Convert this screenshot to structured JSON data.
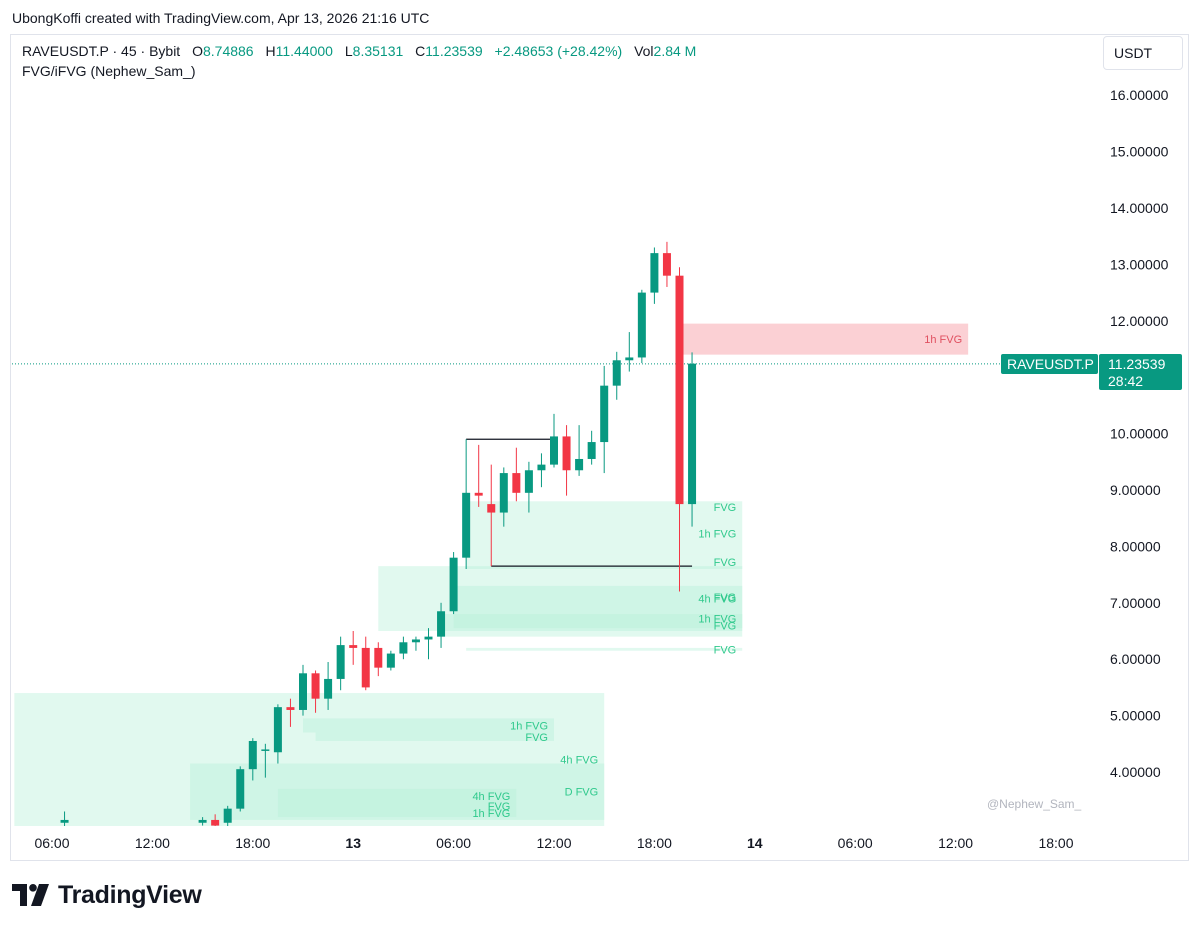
{
  "caption": "UbongKoffi created with TradingView.com, Apr 13, 2026 21:16 UTC",
  "legend": {
    "symbol": "RAVEUSDT.P · 45 · Bybit",
    "o_label": "O",
    "o_value": "8.74886",
    "h_label": "H",
    "h_value": "11.44000",
    "l_label": "L",
    "l_value": "8.35131",
    "c_label": "C",
    "c_value": "11.23539",
    "change": "+2.48653 (+28.42%)",
    "vol_label": "Vol",
    "vol_value": "2.84 M",
    "indicator": "FVG/iFVG (Nephew_Sam_)"
  },
  "currency": "USDT",
  "price_label": {
    "symbol": "RAVEUSDT.P",
    "price": "11.23539",
    "countdown": "28:42"
  },
  "watermark": "@Nephew_Sam_",
  "brand": "TradingView",
  "colors": {
    "up": "#089981",
    "down": "#f23645",
    "bull_zone": "#b7f0d8",
    "bear_zone": "#f9c0c6",
    "zone_text_bull": "#2fc98c",
    "zone_text_bear": "#e05060"
  },
  "chart_data": {
    "type": "candlestick",
    "timeframe": "45",
    "y_ticks": [
      "4.00000",
      "5.00000",
      "6.00000",
      "7.00000",
      "8.00000",
      "9.00000",
      "10.00000",
      "11.00000",
      "12.00000",
      "13.00000",
      "14.00000",
      "15.00000",
      "16.00000"
    ],
    "ylim": [
      3.0,
      16.5
    ],
    "x_ticks": [
      {
        "label": "06:00",
        "bar": 0,
        "bold": false
      },
      {
        "label": "12:00",
        "bar": 8,
        "bold": false
      },
      {
        "label": "18:00",
        "bar": 16,
        "bold": false
      },
      {
        "label": "13",
        "bar": 24,
        "bold": true
      },
      {
        "label": "06:00",
        "bar": 32,
        "bold": false
      },
      {
        "label": "12:00",
        "bar": 40,
        "bold": false
      },
      {
        "label": "18:00",
        "bar": 48,
        "bold": false
      },
      {
        "label": "14",
        "bar": 56,
        "bold": true
      },
      {
        "label": "06:00",
        "bar": 64,
        "bold": false
      },
      {
        "label": "12:00",
        "bar": 72,
        "bold": false
      },
      {
        "label": "18:00",
        "bar": 80,
        "bold": false
      }
    ],
    "candles": [
      {
        "bar": 1,
        "o": 3.1,
        "h": 3.3,
        "l": 3.0,
        "c": 3.15
      },
      {
        "bar": 12,
        "o": 3.1,
        "h": 3.2,
        "l": 3.05,
        "c": 3.15
      },
      {
        "bar": 13,
        "o": 3.15,
        "h": 3.25,
        "l": 3.0,
        "c": 3.05
      },
      {
        "bar": 14,
        "o": 3.1,
        "h": 3.4,
        "l": 3.0,
        "c": 3.35
      },
      {
        "bar": 15,
        "o": 3.35,
        "h": 4.1,
        "l": 3.3,
        "c": 4.05
      },
      {
        "bar": 16,
        "o": 4.05,
        "h": 4.6,
        "l": 3.85,
        "c": 4.55
      },
      {
        "bar": 17,
        "o": 4.4,
        "h": 4.5,
        "l": 3.9,
        "c": 4.4
      },
      {
        "bar": 18,
        "o": 4.35,
        "h": 5.2,
        "l": 4.15,
        "c": 5.15
      },
      {
        "bar": 19,
        "o": 5.15,
        "h": 5.3,
        "l": 4.8,
        "c": 5.1
      },
      {
        "bar": 20,
        "o": 5.1,
        "h": 5.9,
        "l": 5.0,
        "c": 5.75
      },
      {
        "bar": 21,
        "o": 5.75,
        "h": 5.8,
        "l": 5.05,
        "c": 5.3
      },
      {
        "bar": 22,
        "o": 5.3,
        "h": 5.95,
        "l": 5.1,
        "c": 5.65
      },
      {
        "bar": 23,
        "o": 5.65,
        "h": 6.4,
        "l": 5.45,
        "c": 6.25
      },
      {
        "bar": 24,
        "o": 6.25,
        "h": 6.5,
        "l": 5.9,
        "c": 6.2
      },
      {
        "bar": 25,
        "o": 6.2,
        "h": 6.4,
        "l": 5.45,
        "c": 5.5
      },
      {
        "bar": 26,
        "o": 6.2,
        "h": 6.3,
        "l": 5.7,
        "c": 5.85
      },
      {
        "bar": 27,
        "o": 5.85,
        "h": 6.15,
        "l": 5.8,
        "c": 6.1
      },
      {
        "bar": 28,
        "o": 6.1,
        "h": 6.4,
        "l": 6.0,
        "c": 6.3
      },
      {
        "bar": 29,
        "o": 6.3,
        "h": 6.4,
        "l": 6.15,
        "c": 6.35
      },
      {
        "bar": 30,
        "o": 6.35,
        "h": 6.55,
        "l": 6.0,
        "c": 6.4
      },
      {
        "bar": 31,
        "o": 6.4,
        "h": 7.0,
        "l": 6.2,
        "c": 6.85
      },
      {
        "bar": 32,
        "o": 6.85,
        "h": 7.9,
        "l": 6.8,
        "c": 7.8
      },
      {
        "bar": 33,
        "o": 7.8,
        "h": 9.9,
        "l": 7.6,
        "c": 8.95
      },
      {
        "bar": 34,
        "o": 8.95,
        "h": 9.8,
        "l": 8.7,
        "c": 8.9
      },
      {
        "bar": 35,
        "o": 8.75,
        "h": 9.45,
        "l": 7.65,
        "c": 8.6
      },
      {
        "bar": 36,
        "o": 8.6,
        "h": 9.4,
        "l": 8.35,
        "c": 9.3
      },
      {
        "bar": 37,
        "o": 9.3,
        "h": 9.75,
        "l": 8.8,
        "c": 8.95
      },
      {
        "bar": 38,
        "o": 8.95,
        "h": 9.5,
        "l": 8.6,
        "c": 9.35
      },
      {
        "bar": 39,
        "o": 9.35,
        "h": 9.65,
        "l": 9.05,
        "c": 9.45
      },
      {
        "bar": 40,
        "o": 9.45,
        "h": 10.35,
        "l": 9.4,
        "c": 9.95
      },
      {
        "bar": 41,
        "o": 9.95,
        "h": 10.15,
        "l": 8.9,
        "c": 9.35
      },
      {
        "bar": 42,
        "o": 9.35,
        "h": 10.15,
        "l": 9.25,
        "c": 9.55
      },
      {
        "bar": 43,
        "o": 9.55,
        "h": 10.05,
        "l": 9.45,
        "c": 9.85
      },
      {
        "bar": 44,
        "o": 9.85,
        "h": 11.2,
        "l": 9.3,
        "c": 10.85
      },
      {
        "bar": 45,
        "o": 10.85,
        "h": 11.45,
        "l": 10.6,
        "c": 11.3
      },
      {
        "bar": 46,
        "o": 11.3,
        "h": 11.8,
        "l": 11.1,
        "c": 11.35
      },
      {
        "bar": 47,
        "o": 11.35,
        "h": 12.55,
        "l": 11.25,
        "c": 12.5
      },
      {
        "bar": 48,
        "o": 12.5,
        "h": 13.3,
        "l": 12.3,
        "c": 13.2
      },
      {
        "bar": 49,
        "o": 13.2,
        "h": 13.4,
        "l": 12.6,
        "c": 12.8
      },
      {
        "bar": 50,
        "o": 12.8,
        "h": 12.95,
        "l": 7.2,
        "c": 8.75
      },
      {
        "bar": 51,
        "o": 8.75,
        "h": 11.44,
        "l": 8.35,
        "c": 11.24
      }
    ],
    "last_price": 11.23539,
    "horizontal_lines": [
      {
        "from_bar": 33,
        "to_bar": 40,
        "price": 9.9
      },
      {
        "from_bar": 35,
        "to_bar": 51,
        "price": 7.65
      }
    ],
    "zones": [
      {
        "label": "1h FVG",
        "kind": "bear",
        "from_bar": 50,
        "to_bar": 73,
        "top": 11.95,
        "bottom": 11.4
      },
      {
        "label": "FVG",
        "kind": "bull",
        "from_bar": 33,
        "to_bar": 55,
        "top": 8.8,
        "bottom": 8.6
      },
      {
        "label": "1h FVG",
        "kind": "bull",
        "from_bar": 33,
        "to_bar": 55,
        "top": 8.6,
        "bottom": 7.85
      },
      {
        "label": "FVG",
        "kind": "bull",
        "from_bar": 33,
        "to_bar": 55,
        "top": 7.85,
        "bottom": 7.6
      },
      {
        "label": "4h FVG",
        "kind": "bull",
        "from_bar": 26,
        "to_bar": 55,
        "top": 7.65,
        "bottom": 6.5
      },
      {
        "label": "FVG",
        "kind": "bull",
        "from_bar": 32,
        "to_bar": 55,
        "top": 7.3,
        "bottom": 6.9
      },
      {
        "label": "1h FVG",
        "kind": "bull",
        "from_bar": 32,
        "to_bar": 55,
        "top": 6.9,
        "bottom": 6.55
      },
      {
        "label": "FVG",
        "kind": "bull",
        "from_bar": 31,
        "to_bar": 55,
        "top": 6.8,
        "bottom": 6.4
      },
      {
        "label": "FVG",
        "kind": "bull",
        "from_bar": 33,
        "to_bar": 55,
        "top": 6.2,
        "bottom": 6.15
      },
      {
        "label": "4h FVG",
        "kind": "bull",
        "from_bar": -3,
        "to_bar": 44,
        "top": 5.4,
        "bottom": 3.0
      },
      {
        "label": "1h FVG",
        "kind": "bull",
        "from_bar": 20,
        "to_bar": 40,
        "top": 4.95,
        "bottom": 4.7
      },
      {
        "label": "FVG",
        "kind": "bull",
        "from_bar": 21,
        "to_bar": 40,
        "top": 4.7,
        "bottom": 4.55
      },
      {
        "label": "D FVG",
        "kind": "bull",
        "from_bar": 11,
        "to_bar": 44,
        "top": 4.15,
        "bottom": 3.15
      },
      {
        "label": "4h FVG",
        "kind": "bull",
        "from_bar": 18,
        "to_bar": 37,
        "top": 3.7,
        "bottom": 3.45
      },
      {
        "label": "FVG",
        "kind": "bull",
        "from_bar": 18,
        "to_bar": 37,
        "top": 3.45,
        "bottom": 3.35
      },
      {
        "label": "1h FVG",
        "kind": "bull",
        "from_bar": 18,
        "to_bar": 37,
        "top": 3.35,
        "bottom": 3.2
      }
    ]
  }
}
